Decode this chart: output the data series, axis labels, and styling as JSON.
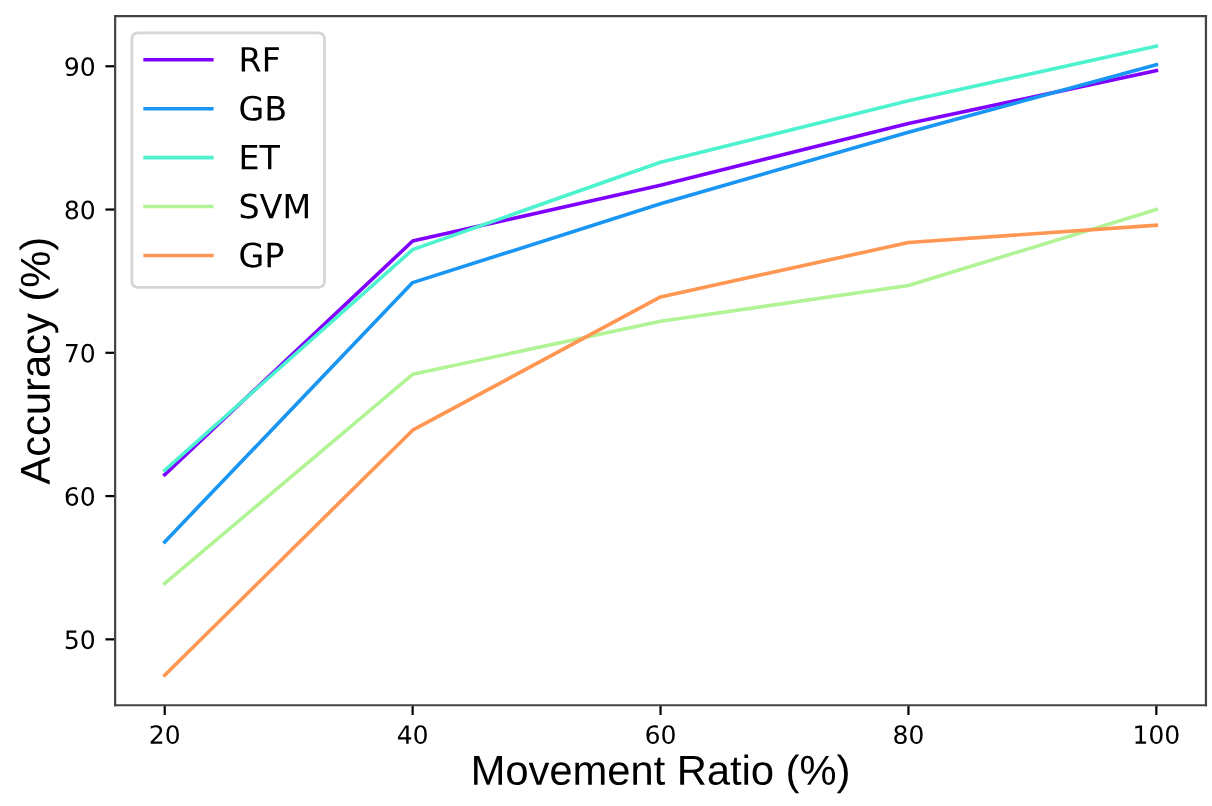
{
  "chart_data": {
    "type": "line",
    "xlabel": "Movement Ratio (%)",
    "ylabel": "Accuracy (%)",
    "x": [
      20,
      40,
      60,
      80,
      100
    ],
    "series": [
      {
        "name": "RF",
        "color": "#8000ff",
        "values": [
          61.5,
          77.8,
          81.7,
          86.0,
          89.7
        ]
      },
      {
        "name": "GB",
        "color": "#1996f3",
        "values": [
          56.8,
          74.9,
          80.4,
          85.4,
          90.1
        ]
      },
      {
        "name": "ET",
        "color": "#4df3ce",
        "values": [
          61.8,
          77.2,
          83.3,
          87.6,
          91.4
        ]
      },
      {
        "name": "SVM",
        "color": "#b2f396",
        "values": [
          53.9,
          68.5,
          72.2,
          74.7,
          80.0
        ]
      },
      {
        "name": "GP",
        "color": "#ff9652",
        "values": [
          47.5,
          64.6,
          73.9,
          77.7,
          78.9
        ]
      }
    ],
    "xlim": [
      16,
      104
    ],
    "ylim": [
      45.4,
      93.5
    ],
    "xticks": [
      20,
      40,
      60,
      80,
      100
    ],
    "yticks": [
      50,
      60,
      70,
      80,
      90
    ],
    "legend": "top left",
    "grid": false
  }
}
